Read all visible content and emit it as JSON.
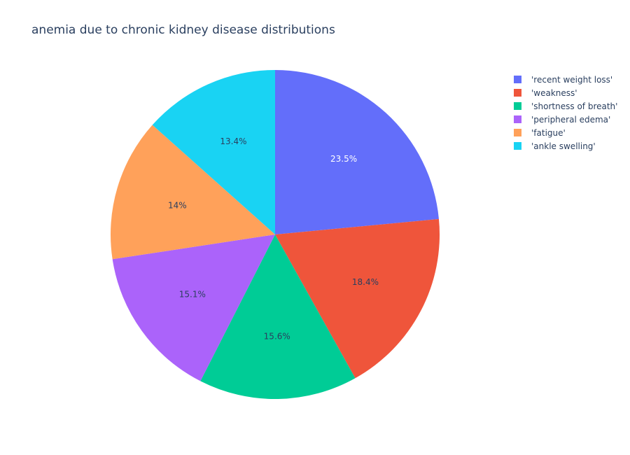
{
  "chart_data": {
    "type": "pie",
    "title": "anemia due to chronic kidney disease distributions",
    "legend_position": "top-right",
    "slices": [
      {
        "label": "'recent weight loss'",
        "value": 23.5,
        "display": "23.5%",
        "color": "#636efa",
        "text_color": "#ffffff"
      },
      {
        "label": "'weakness'",
        "value": 18.4,
        "display": "18.4%",
        "color": "#ef553b",
        "text_color": "#2a3f5f"
      },
      {
        "label": "'shortness of breath'",
        "value": 15.6,
        "display": "15.6%",
        "color": "#00cc96",
        "text_color": "#2a3f5f"
      },
      {
        "label": "'peripheral edema'",
        "value": 15.1,
        "display": "15.1%",
        "color": "#ab63fa",
        "text_color": "#2a3f5f"
      },
      {
        "label": "'fatigue'",
        "value": 14.0,
        "display": "14%",
        "color": "#ffa15a",
        "text_color": "#2a3f5f"
      },
      {
        "label": "'ankle swelling'",
        "value": 13.4,
        "display": "13.4%",
        "color": "#19d3f3",
        "text_color": "#2a3f5f"
      }
    ]
  }
}
